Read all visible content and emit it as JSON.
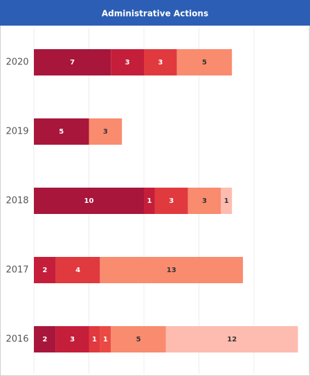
{
  "chart_data": {
    "type": "stacked-bar-horizontal",
    "title": "Administrative Actions",
    "categories": [
      "2020",
      "2019",
      "2018",
      "2017",
      "2016"
    ],
    "series": [
      {
        "color": "#a8163b",
        "values": [
          7,
          5,
          10,
          null,
          2
        ]
      },
      {
        "color": "#c41e3a",
        "values": [
          3,
          null,
          1,
          2,
          3
        ]
      },
      {
        "color": "#e0393e",
        "values": [
          3,
          null,
          3,
          4,
          1
        ]
      },
      {
        "color": "#ea4a43",
        "values": [
          null,
          null,
          null,
          null,
          1
        ]
      },
      {
        "color": "#f98b6f",
        "values": [
          5,
          3,
          3,
          13,
          5
        ]
      },
      {
        "color": "#fdbcaf",
        "values": [
          null,
          null,
          1,
          null,
          12
        ]
      }
    ],
    "xlim": [
      0,
      25
    ],
    "xticks": [
      0,
      5,
      10,
      15,
      20,
      25
    ],
    "grid": true
  }
}
